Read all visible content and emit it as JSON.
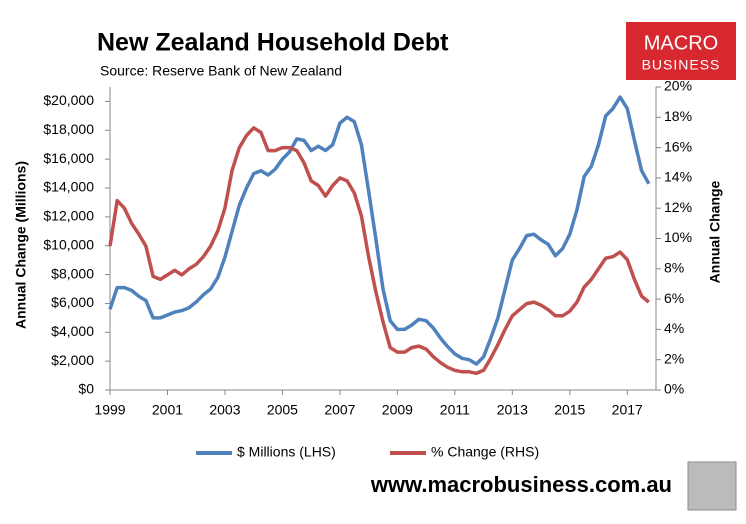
{
  "chart_data": {
    "type": "line",
    "title": "New Zealand Household Debt",
    "subtitle": "Source: Reserve Bank of New Zealand",
    "brand": [
      "MACRO",
      "BUSINESS"
    ],
    "website": "www.macrobusiness.com.au",
    "ylabel": "Annual Change (Millions)",
    "y2label": "Annual Change",
    "x": [
      1999,
      1999.25,
      1999.5,
      1999.75,
      2000,
      2000.25,
      2000.5,
      2000.75,
      2001,
      2001.25,
      2001.5,
      2001.75,
      2002,
      2002.25,
      2002.5,
      2002.75,
      2003,
      2003.25,
      2003.5,
      2003.75,
      2004,
      2004.25,
      2004.5,
      2004.75,
      2005,
      2005.25,
      2005.5,
      2005.75,
      2006,
      2006.25,
      2006.5,
      2006.75,
      2007,
      2007.25,
      2007.5,
      2007.75,
      2008,
      2008.25,
      2008.5,
      2008.75,
      2009,
      2009.25,
      2009.5,
      2009.75,
      2010,
      2010.25,
      2010.5,
      2010.75,
      2011,
      2011.25,
      2011.5,
      2011.75,
      2012,
      2012.25,
      2012.5,
      2012.75,
      2013,
      2013.25,
      2013.5,
      2013.75,
      2014,
      2014.25,
      2014.5,
      2014.75,
      2015,
      2015.25,
      2015.5,
      2015.75,
      2016,
      2016.25,
      2016.5,
      2016.75,
      2017,
      2017.25,
      2017.5,
      2017.75
    ],
    "xlim": [
      1999,
      2018
    ],
    "xticks": [
      1999,
      2001,
      2003,
      2005,
      2007,
      2009,
      2011,
      2013,
      2015,
      2017
    ],
    "ylim": [
      0,
      21000
    ],
    "yticks": [
      {
        "value": 0,
        "label": "$0"
      },
      {
        "value": 2000,
        "label": "$2,000"
      },
      {
        "value": 4000,
        "label": "$4,000"
      },
      {
        "value": 6000,
        "label": "$6,000"
      },
      {
        "value": 8000,
        "label": "$8,000"
      },
      {
        "value": 10000,
        "label": "$10,000"
      },
      {
        "value": 12000,
        "label": "$12,000"
      },
      {
        "value": 14000,
        "label": "$14,000"
      },
      {
        "value": 16000,
        "label": "$16,000"
      },
      {
        "value": 18000,
        "label": "$18,000"
      },
      {
        "value": 20000,
        "label": "$20,000"
      }
    ],
    "y2lim": [
      0,
      20
    ],
    "y2ticks": [
      {
        "value": 0,
        "label": "0%"
      },
      {
        "value": 2,
        "label": "2%"
      },
      {
        "value": 4,
        "label": "4%"
      },
      {
        "value": 6,
        "label": "6%"
      },
      {
        "value": 8,
        "label": "8%"
      },
      {
        "value": 10,
        "label": "10%"
      },
      {
        "value": 12,
        "label": "12%"
      },
      {
        "value": 14,
        "label": "14%"
      },
      {
        "value": 16,
        "label": "16%"
      },
      {
        "value": 18,
        "label": "18%"
      },
      {
        "value": 20,
        "label": "20%"
      }
    ],
    "series": [
      {
        "name": "$ Millions (LHS)",
        "color": "#4f81bd",
        "axis": "y",
        "values": [
          5600,
          7100,
          7100,
          6900,
          6500,
          6200,
          5000,
          5000,
          5200,
          5400,
          5500,
          5700,
          6100,
          6600,
          7000,
          7800,
          9200,
          11000,
          12800,
          14000,
          15000,
          15200,
          14900,
          15300,
          16000,
          16500,
          17400,
          17300,
          16600,
          16900,
          16600,
          17000,
          18500,
          18900,
          18600,
          17000,
          13800,
          10500,
          7000,
          4800,
          4200,
          4200,
          4500,
          4900,
          4800,
          4300,
          3600,
          3000,
          2500,
          2200,
          2100,
          1800,
          2300,
          3600,
          5000,
          7000,
          9000,
          9800,
          10700,
          10800,
          10400,
          10100,
          9300,
          9800,
          10800,
          12500,
          14800,
          15500,
          17000,
          19000,
          19500,
          20300,
          19500,
          17300,
          15200,
          14300
        ]
      },
      {
        "name": "% Change (RHS)",
        "color": "#c0504d",
        "axis": "y2",
        "values": [
          9.5,
          12.5,
          12,
          11,
          10.3,
          9.5,
          7.5,
          7.3,
          7.6,
          7.9,
          7.6,
          8,
          8.3,
          8.8,
          9.5,
          10.5,
          12,
          14.5,
          16,
          16.8,
          17.3,
          17,
          15.8,
          15.8,
          16,
          16,
          15.8,
          15,
          13.8,
          13.5,
          12.8,
          13.5,
          14,
          13.8,
          13,
          11.5,
          8.8,
          6.5,
          4.5,
          2.8,
          2.5,
          2.5,
          2.8,
          2.9,
          2.7,
          2.2,
          1.8,
          1.5,
          1.3,
          1.2,
          1.2,
          1.1,
          1.3,
          2.1,
          3,
          4,
          4.9,
          5.3,
          5.7,
          5.8,
          5.6,
          5.3,
          4.9,
          4.9,
          5.2,
          5.8,
          6.8,
          7.3,
          8,
          8.7,
          8.8,
          9.1,
          8.6,
          7.3,
          6.2,
          5.8
        ]
      }
    ]
  }
}
